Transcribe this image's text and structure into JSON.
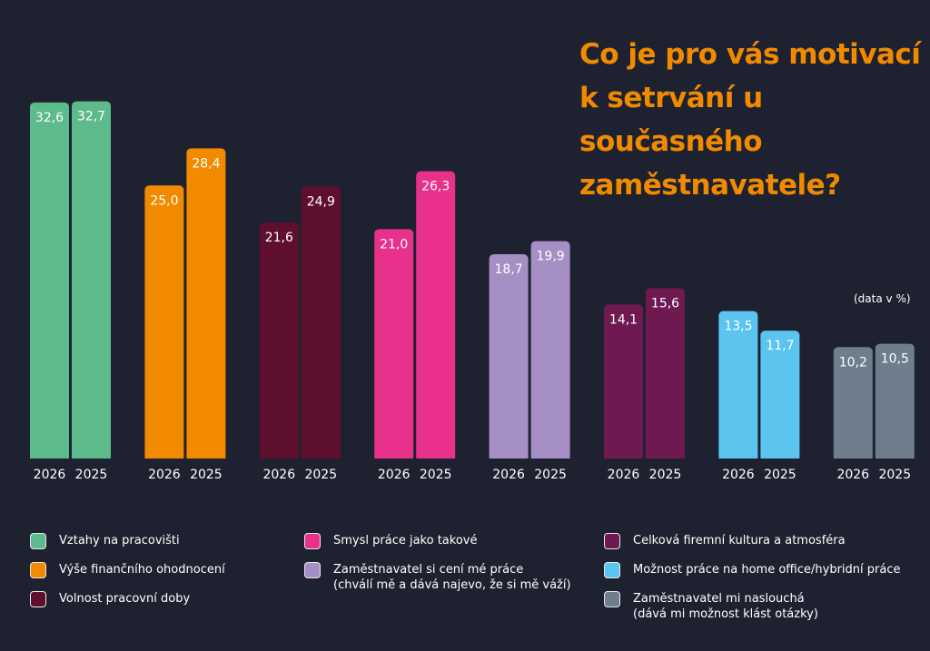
{
  "chart_data": {
    "type": "bar",
    "title": "Co je pro vás motivací k setrvání u současného zaměstnavatele?",
    "note": "(data v %)",
    "x_tick_labels": [
      "2026",
      "2025"
    ],
    "ylim": [
      0,
      34
    ],
    "grid": false,
    "legend_placement": "bottom",
    "categories": [
      {
        "name": "Vztahy na pracovišti",
        "color": "#5dba8a",
        "values": {
          "2026": 32.6,
          "2025": 32.7
        },
        "labels": [
          "32,6",
          "32,7"
        ]
      },
      {
        "name": "Výše finančního ohodnocení",
        "color": "#f28a00",
        "values": {
          "2026": 25.0,
          "2025": 28.4
        },
        "labels": [
          "25,0",
          "28,4"
        ]
      },
      {
        "name": "Volnost pracovní doby",
        "color": "#5e0f2e",
        "values": {
          "2026": 21.6,
          "2025": 24.9
        },
        "labels": [
          "21,6",
          "24,9"
        ]
      },
      {
        "name": "Smysl práce jako takové",
        "color": "#e8318a",
        "values": {
          "2026": 21.0,
          "2025": 26.3
        },
        "labels": [
          "21,0",
          "26,3"
        ]
      },
      {
        "name": "Zaměstnavatel si cení mé práce (chválí mě a dává najevo, že si mě váží)",
        "color": "#a58fc4",
        "values": {
          "2026": 18.7,
          "2025": 19.9
        },
        "labels": [
          "18,7",
          "19,9"
        ]
      },
      {
        "name": "Celková firemní kultura a atmosféra",
        "color": "#6e1a50",
        "values": {
          "2026": 14.1,
          "2025": 15.6
        },
        "labels": [
          "14,1",
          "15,6"
        ]
      },
      {
        "name": "Možnost práce na home office/hybridní práce",
        "color": "#5bc5f0",
        "values": {
          "2026": 13.5,
          "2025": 11.7
        },
        "labels": [
          "13,5",
          "11,7"
        ]
      },
      {
        "name": "Zaměstnavatel mi naslouchá (dává mi možnost klást otázky)",
        "color": "#6e7e8c",
        "values": {
          "2026": 10.2,
          "2025": 10.5
        },
        "labels": [
          "10,2",
          "10,5"
        ]
      }
    ]
  }
}
